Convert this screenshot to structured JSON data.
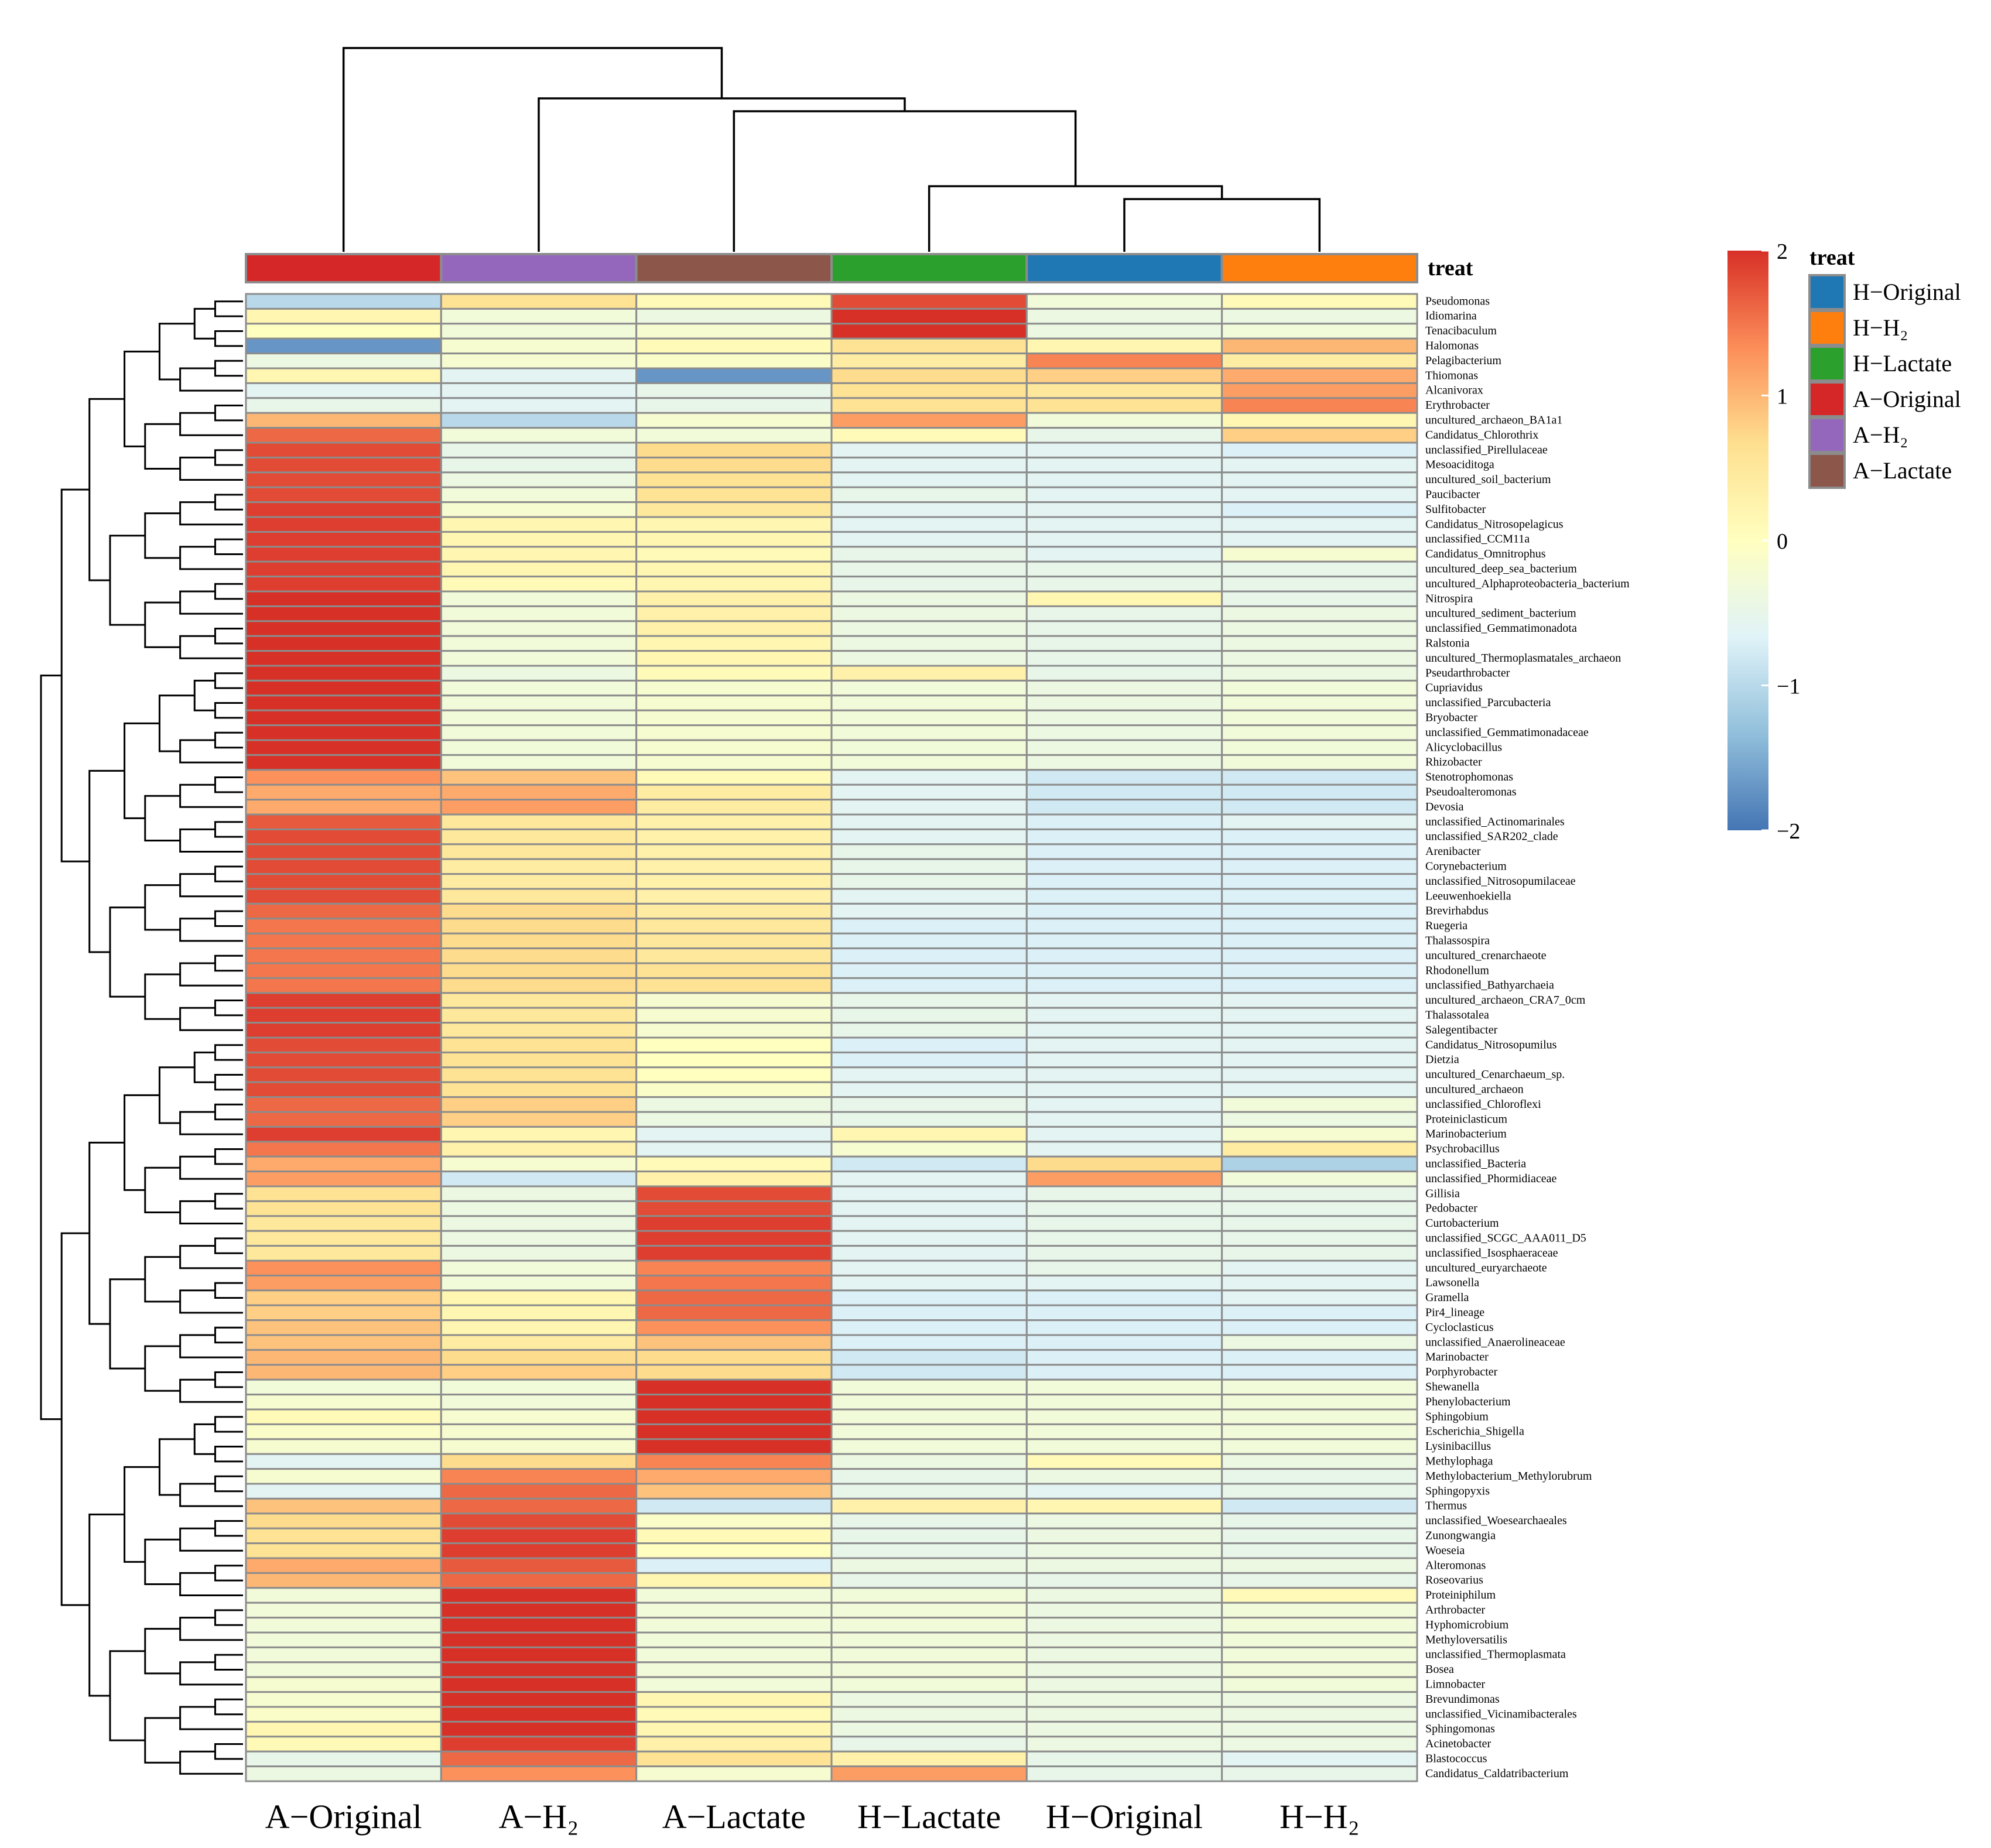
{
  "chart_data": {
    "type": "heatmap",
    "title": "",
    "columns": [
      "A−Original",
      "A−H₂",
      "A−Lactate",
      "H−Lactate",
      "H−Original",
      "H−H₂"
    ],
    "annotation": {
      "title": "treat",
      "column_groups": [
        "A−Original",
        "A−H₂",
        "A−Lactate",
        "H−Lactate",
        "H−Original",
        "H−H₂"
      ],
      "legend": [
        {
          "label": "H−Original",
          "color": "#1f77b4"
        },
        {
          "label": "H−H₂",
          "color": "#ff7f0e"
        },
        {
          "label": "H−Lactate",
          "color": "#2ca02c"
        },
        {
          "label": "A−Original",
          "color": "#d62728"
        },
        {
          "label": "A−H₂",
          "color": "#9467bd"
        },
        {
          "label": "A−Lactate",
          "color": "#8c564b"
        }
      ]
    },
    "color_scale": {
      "range": [
        -2,
        2
      ],
      "ticks": [
        2,
        1,
        0,
        -1,
        -2
      ],
      "tick_labels": [
        "2",
        "1",
        "0",
        "−1",
        "−2"
      ],
      "colors": [
        "#4575b4",
        "#91bfdb",
        "#e0f3f8",
        "#ffffbf",
        "#fee090",
        "#fc8d59",
        "#d73027"
      ]
    },
    "rows": [
      {
        "name": "Pseudomonas",
        "values": [
          -1.0,
          0.6,
          0.1,
          1.8,
          -0.3,
          0.1
        ]
      },
      {
        "name": "Idiomarina",
        "values": [
          0.2,
          -0.3,
          -0.4,
          2.0,
          -0.4,
          -0.4
        ]
      },
      {
        "name": "Tenacibaculum",
        "values": [
          0.0,
          -0.3,
          -0.2,
          2.0,
          -0.4,
          -0.3
        ]
      },
      {
        "name": "Halomonas",
        "values": [
          -1.7,
          -0.2,
          0.1,
          0.6,
          0.2,
          1.0
        ]
      },
      {
        "name": "Pelagibacterium",
        "values": [
          -0.4,
          -0.2,
          -0.1,
          0.4,
          1.4,
          0.4
        ]
      },
      {
        "name": "Thiomonas",
        "values": [
          0.2,
          -0.6,
          -1.7,
          0.7,
          0.8,
          1.1
        ]
      },
      {
        "name": "Alcanivorax",
        "values": [
          -0.6,
          -0.6,
          -0.5,
          0.6,
          0.5,
          1.2
        ]
      },
      {
        "name": "Erythrobacter",
        "values": [
          -0.5,
          -0.6,
          -0.5,
          0.6,
          0.6,
          1.4
        ]
      },
      {
        "name": "uncultured_archaeon_BA1a1",
        "values": [
          1.0,
          -1.0,
          -0.2,
          1.2,
          -0.3,
          0.2
        ]
      },
      {
        "name": "Candidatus_Chlorothrix",
        "values": [
          1.6,
          -0.3,
          -0.3,
          0.1,
          -0.5,
          0.8
        ]
      },
      {
        "name": "unclassified_Pirellulaceae",
        "values": [
          1.8,
          -0.5,
          0.7,
          -0.6,
          -0.6,
          -0.7
        ]
      },
      {
        "name": "Mesoaciditoga",
        "values": [
          1.8,
          -0.5,
          0.7,
          -0.6,
          -0.6,
          -0.6
        ]
      },
      {
        "name": "uncultured_soil_bacterium",
        "values": [
          1.8,
          -0.4,
          0.6,
          -0.6,
          -0.6,
          -0.6
        ]
      },
      {
        "name": "Paucibacter",
        "values": [
          1.8,
          -0.3,
          0.6,
          -0.5,
          -0.6,
          -0.6
        ]
      },
      {
        "name": "Sulfitobacter",
        "values": [
          1.9,
          -0.2,
          0.5,
          -0.6,
          -0.6,
          -0.7
        ]
      },
      {
        "name": "Candidatus_Nitrosopelagicus",
        "values": [
          1.9,
          0.2,
          0.2,
          -0.6,
          -0.6,
          -0.6
        ]
      },
      {
        "name": "unclassified_CCM11a",
        "values": [
          1.9,
          0.2,
          0.2,
          -0.6,
          -0.6,
          -0.6
        ]
      },
      {
        "name": "Candidatus_Omnitrophus",
        "values": [
          1.9,
          0.2,
          0.1,
          -0.5,
          -0.6,
          -0.2
        ]
      },
      {
        "name": "uncultured_deep_sea_bacterium",
        "values": [
          1.9,
          0.2,
          0.2,
          -0.5,
          -0.5,
          -0.5
        ]
      },
      {
        "name": "uncultured_Alphaproteobacteria_bacterium",
        "values": [
          1.9,
          0.1,
          0.2,
          -0.5,
          -0.5,
          -0.5
        ]
      },
      {
        "name": "Nitrospira",
        "values": [
          2.0,
          -0.3,
          0.3,
          -0.4,
          0.2,
          -0.5
        ]
      },
      {
        "name": "uncultured_sediment_bacterium",
        "values": [
          2.0,
          -0.3,
          0.3,
          -0.4,
          -0.5,
          -0.4
        ]
      },
      {
        "name": "unclassified_Gemmatimonadota",
        "values": [
          2.0,
          -0.3,
          0.3,
          -0.4,
          -0.5,
          -0.4
        ]
      },
      {
        "name": "Ralstonia",
        "values": [
          2.0,
          -0.3,
          0.2,
          -0.4,
          -0.5,
          -0.4
        ]
      },
      {
        "name": "uncultured_Thermoplasmatales_archaeon",
        "values": [
          2.0,
          -0.3,
          0.2,
          -0.4,
          -0.5,
          -0.4
        ]
      },
      {
        "name": "Pseudarthrobacter",
        "values": [
          2.0,
          -0.4,
          0.1,
          0.3,
          -0.5,
          -0.4
        ]
      },
      {
        "name": "Cupriavidus",
        "values": [
          2.0,
          -0.3,
          -0.2,
          -0.3,
          -0.4,
          -0.3
        ]
      },
      {
        "name": "unclassified_Parcubacteria",
        "values": [
          2.0,
          -0.3,
          -0.2,
          -0.3,
          -0.4,
          -0.3
        ]
      },
      {
        "name": "Bryobacter",
        "values": [
          2.0,
          -0.3,
          -0.2,
          -0.3,
          -0.4,
          -0.3
        ]
      },
      {
        "name": "unclassified_Gemmatimonadaceae",
        "values": [
          2.0,
          -0.3,
          -0.2,
          -0.3,
          -0.4,
          -0.3
        ]
      },
      {
        "name": "Alicyclobacillus",
        "values": [
          2.0,
          -0.3,
          -0.2,
          -0.3,
          -0.4,
          -0.3
        ]
      },
      {
        "name": "Rhizobacter",
        "values": [
          2.0,
          -0.3,
          -0.2,
          -0.3,
          -0.4,
          -0.3
        ]
      },
      {
        "name": "Stenotrophomonas",
        "values": [
          1.3,
          0.9,
          0.1,
          -0.6,
          -0.8,
          -0.8
        ]
      },
      {
        "name": "Pseudoalteromonas",
        "values": [
          1.1,
          1.1,
          0.4,
          -0.6,
          -0.8,
          -0.8
        ]
      },
      {
        "name": "Devosia",
        "values": [
          1.1,
          1.2,
          0.4,
          -0.6,
          -0.8,
          -0.8
        ]
      },
      {
        "name": "unclassified_Actinomarinales",
        "values": [
          1.7,
          0.5,
          0.3,
          -0.6,
          -0.7,
          -0.6
        ]
      },
      {
        "name": "unclassified_SAR202_clade",
        "values": [
          1.8,
          0.5,
          0.3,
          -0.6,
          -0.7,
          -0.7
        ]
      },
      {
        "name": "Arenibacter",
        "values": [
          1.8,
          0.5,
          0.3,
          -0.5,
          -0.7,
          -0.7
        ]
      },
      {
        "name": "Corynebacterium",
        "values": [
          1.8,
          0.4,
          0.3,
          -0.5,
          -0.7,
          -0.7
        ]
      },
      {
        "name": "unclassified_Nitrosopumilaceae",
        "values": [
          1.8,
          0.4,
          0.3,
          -0.5,
          -0.7,
          -0.7
        ]
      },
      {
        "name": "Leeuwenhoekiella",
        "values": [
          1.8,
          0.5,
          0.3,
          -0.6,
          -0.7,
          -0.7
        ]
      },
      {
        "name": "Brevirhabdus",
        "values": [
          1.6,
          0.7,
          0.4,
          -0.6,
          -0.7,
          -0.7
        ]
      },
      {
        "name": "Ruegeria",
        "values": [
          1.5,
          0.7,
          0.5,
          -0.7,
          -0.7,
          -0.7
        ]
      },
      {
        "name": "Thalassospira",
        "values": [
          1.5,
          0.7,
          0.5,
          -0.7,
          -0.7,
          -0.7
        ]
      },
      {
        "name": "uncultured_crenarchaeote",
        "values": [
          1.5,
          0.7,
          0.5,
          -0.7,
          -0.7,
          -0.7
        ]
      },
      {
        "name": "Rhodonellum",
        "values": [
          1.5,
          0.7,
          0.6,
          -0.7,
          -0.7,
          -0.7
        ]
      },
      {
        "name": "unclassified_Bathyarchaeia",
        "values": [
          1.5,
          0.7,
          0.6,
          -0.7,
          -0.7,
          -0.7
        ]
      },
      {
        "name": "uncultured_archaeon_CRA7_0cm",
        "values": [
          1.9,
          0.5,
          -0.2,
          -0.5,
          -0.6,
          -0.6
        ]
      },
      {
        "name": "Thalassotalea",
        "values": [
          1.9,
          0.5,
          -0.2,
          -0.5,
          -0.6,
          -0.6
        ]
      },
      {
        "name": "Salegentibacter",
        "values": [
          1.9,
          0.5,
          -0.2,
          -0.5,
          -0.6,
          -0.6
        ]
      },
      {
        "name": "Candidatus_Nitrosopumilus",
        "values": [
          1.8,
          0.6,
          0.0,
          -0.7,
          -0.6,
          -0.6
        ]
      },
      {
        "name": "Dietzia",
        "values": [
          1.8,
          0.6,
          0.0,
          -0.7,
          -0.6,
          -0.6
        ]
      },
      {
        "name": "uncultured_Cenarchaeum_sp.",
        "values": [
          1.8,
          0.6,
          0.0,
          -0.6,
          -0.6,
          -0.6
        ]
      },
      {
        "name": "uncultured_archaeon",
        "values": [
          1.8,
          0.6,
          -0.1,
          -0.6,
          -0.6,
          -0.6
        ]
      },
      {
        "name": "unclassified_Chloroflexi",
        "values": [
          1.6,
          0.8,
          -0.4,
          -0.5,
          -0.6,
          -0.3
        ]
      },
      {
        "name": "Proteiniclasticum",
        "values": [
          1.6,
          0.8,
          -0.4,
          -0.5,
          -0.6,
          -0.4
        ]
      },
      {
        "name": "Marinobacterium",
        "values": [
          1.9,
          0.2,
          -0.6,
          0.2,
          -0.6,
          -0.2
        ]
      },
      {
        "name": "Psychrobacillus",
        "values": [
          1.5,
          0.3,
          -0.6,
          -0.2,
          -0.6,
          0.4
        ]
      },
      {
        "name": "unclassified_Bacteria",
        "values": [
          1.1,
          -0.2,
          0.1,
          -0.8,
          0.7,
          -1.1
        ]
      },
      {
        "name": "unclassified_Phormidiaceae",
        "values": [
          1.2,
          -0.8,
          0.3,
          -0.6,
          1.2,
          -0.3
        ]
      },
      {
        "name": "Gillisia",
        "values": [
          0.6,
          -0.4,
          1.8,
          -0.6,
          -0.5,
          -0.5
        ]
      },
      {
        "name": "Pedobacter",
        "values": [
          0.6,
          -0.4,
          1.8,
          -0.6,
          -0.5,
          -0.5
        ]
      },
      {
        "name": "Curtobacterium",
        "values": [
          0.5,
          -0.4,
          1.9,
          -0.6,
          -0.5,
          -0.5
        ]
      },
      {
        "name": "unclassified_SCGC_AAA011_D5",
        "values": [
          0.5,
          -0.4,
          1.9,
          -0.6,
          -0.5,
          -0.5
        ]
      },
      {
        "name": "unclassified_Isosphaeraceae",
        "values": [
          0.5,
          -0.4,
          1.9,
          -0.6,
          -0.5,
          -0.5
        ]
      },
      {
        "name": "uncultured_euryarchaeote",
        "values": [
          1.3,
          -0.3,
          1.4,
          -0.6,
          -0.5,
          -0.6
        ]
      },
      {
        "name": "Lawsonella",
        "values": [
          1.2,
          -0.3,
          1.5,
          -0.6,
          -0.6,
          -0.6
        ]
      },
      {
        "name": "Gramella",
        "values": [
          0.8,
          0.2,
          1.6,
          -0.7,
          -0.7,
          -0.6
        ]
      },
      {
        "name": "Pir4_lineage",
        "values": [
          0.8,
          0.2,
          1.6,
          -0.7,
          -0.7,
          -0.7
        ]
      },
      {
        "name": "Cycloclasticus",
        "values": [
          0.9,
          0.2,
          1.3,
          -0.7,
          -0.7,
          -0.7
        ]
      },
      {
        "name": "unclassified_Anaerolineaceae",
        "values": [
          0.9,
          0.4,
          0.9,
          -0.7,
          -0.7,
          -0.4
        ]
      },
      {
        "name": "Marinobacter",
        "values": [
          1.0,
          0.7,
          0.7,
          -0.8,
          -0.7,
          -0.7
        ]
      },
      {
        "name": "Porphyrobacter",
        "values": [
          1.0,
          0.8,
          0.7,
          -0.8,
          -0.7,
          -0.7
        ]
      },
      {
        "name": "Shewanella",
        "values": [
          -0.3,
          -0.3,
          2.0,
          -0.3,
          -0.3,
          -0.3
        ]
      },
      {
        "name": "Phenylobacterium",
        "values": [
          -0.2,
          -0.3,
          2.0,
          -0.3,
          -0.3,
          -0.3
        ]
      },
      {
        "name": "Sphingobium",
        "values": [
          0.1,
          -0.2,
          2.0,
          -0.3,
          -0.3,
          -0.3
        ]
      },
      {
        "name": "Escherichia_Shigella",
        "values": [
          -0.1,
          -0.2,
          2.0,
          -0.3,
          -0.3,
          -0.3
        ]
      },
      {
        "name": "Lysinibacillus",
        "values": [
          -0.2,
          -0.2,
          2.0,
          -0.3,
          -0.3,
          -0.3
        ]
      },
      {
        "name": "Methylophaga",
        "values": [
          -0.6,
          0.7,
          1.4,
          -0.4,
          0.1,
          -0.4
        ]
      },
      {
        "name": "Methylobacterium_Methylorubrum",
        "values": [
          -0.2,
          1.4,
          1.1,
          -0.5,
          -0.4,
          -0.5
        ]
      },
      {
        "name": "Sphingopyxis",
        "values": [
          -0.6,
          1.6,
          0.9,
          -0.5,
          -0.6,
          -0.5
        ]
      },
      {
        "name": "Thermus",
        "values": [
          0.9,
          1.6,
          -0.8,
          0.3,
          0.2,
          -0.8
        ]
      },
      {
        "name": "unclassified_Woesearchaeales",
        "values": [
          0.7,
          1.8,
          -0.1,
          -0.5,
          -0.4,
          -0.5
        ]
      },
      {
        "name": "Zunongwangia",
        "values": [
          0.6,
          1.9,
          0.1,
          -0.5,
          -0.4,
          -0.5
        ]
      },
      {
        "name": "Woeseia",
        "values": [
          0.6,
          1.9,
          0.0,
          -0.5,
          -0.4,
          -0.5
        ]
      },
      {
        "name": "Alteromonas",
        "values": [
          1.1,
          1.7,
          -0.7,
          -0.4,
          -0.4,
          -0.4
        ]
      },
      {
        "name": "Roseovarius",
        "values": [
          1.0,
          1.6,
          0.2,
          -0.5,
          -0.5,
          -0.5
        ]
      },
      {
        "name": "Proteiniphilum",
        "values": [
          -0.3,
          2.0,
          -0.3,
          -0.3,
          -0.4,
          0.1
        ]
      },
      {
        "name": "Arthrobacter",
        "values": [
          -0.3,
          2.0,
          -0.3,
          -0.3,
          -0.4,
          -0.3
        ]
      },
      {
        "name": "Hyphomicrobium",
        "values": [
          -0.3,
          2.0,
          -0.3,
          -0.3,
          -0.4,
          -0.3
        ]
      },
      {
        "name": "Methyloversatilis",
        "values": [
          -0.3,
          2.0,
          -0.3,
          -0.3,
          -0.4,
          -0.3
        ]
      },
      {
        "name": "unclassified_Thermoplasmata",
        "values": [
          -0.3,
          2.0,
          -0.3,
          -0.3,
          -0.4,
          -0.3
        ]
      },
      {
        "name": "Bosea",
        "values": [
          -0.3,
          2.0,
          -0.3,
          -0.3,
          -0.4,
          -0.3
        ]
      },
      {
        "name": "Limnobacter",
        "values": [
          -0.2,
          2.0,
          -0.3,
          -0.3,
          -0.4,
          -0.3
        ]
      },
      {
        "name": "Brevundimonas",
        "values": [
          -0.2,
          2.0,
          0.2,
          -0.4,
          -0.4,
          -0.4
        ]
      },
      {
        "name": "unclassified_Vicinamibacterales",
        "values": [
          -0.1,
          2.0,
          0.1,
          -0.4,
          -0.4,
          -0.4
        ]
      },
      {
        "name": "Sphingomonas",
        "values": [
          0.2,
          2.0,
          0.2,
          -0.4,
          -0.4,
          -0.4
        ]
      },
      {
        "name": "Acinetobacter",
        "values": [
          0.1,
          1.9,
          0.3,
          -0.5,
          -0.4,
          -0.4
        ]
      },
      {
        "name": "Blastococcus",
        "values": [
          -0.5,
          1.6,
          0.6,
          0.3,
          -0.5,
          -0.6
        ]
      },
      {
        "name": "Candidatus_Caldatribacterium",
        "values": [
          -0.4,
          1.3,
          -0.2,
          1.2,
          -0.5,
          -0.5
        ]
      }
    ]
  }
}
